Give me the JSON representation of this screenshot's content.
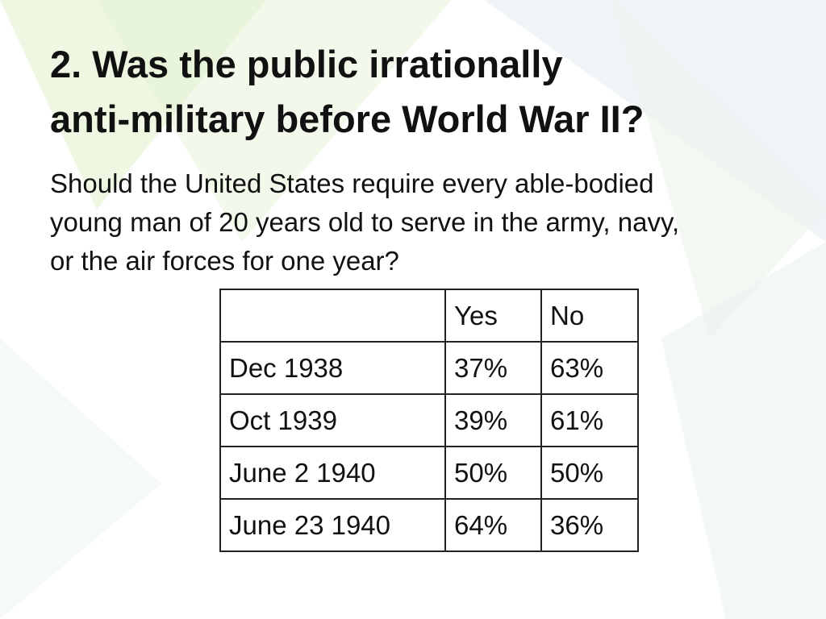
{
  "title_lines": [
    "2. Was the public irrationally",
    "anti-military before World War II?"
  ],
  "question": "Should the United States require every able-bodied young man of 20 years old to serve in the army, navy, or the air forces for one year?",
  "table": {
    "columns": [
      "Yes",
      "No"
    ],
    "rows": [
      {
        "label": "Dec 1938",
        "cells": [
          "37%",
          "63%"
        ]
      },
      {
        "label": "Oct 1939",
        "cells": [
          "39%",
          "61%"
        ]
      },
      {
        "label": "June 2 1940",
        "cells": [
          "50%",
          "50%"
        ]
      },
      {
        "label": "June 23 1940",
        "cells": [
          "64%",
          "36%"
        ]
      }
    ]
  }
}
